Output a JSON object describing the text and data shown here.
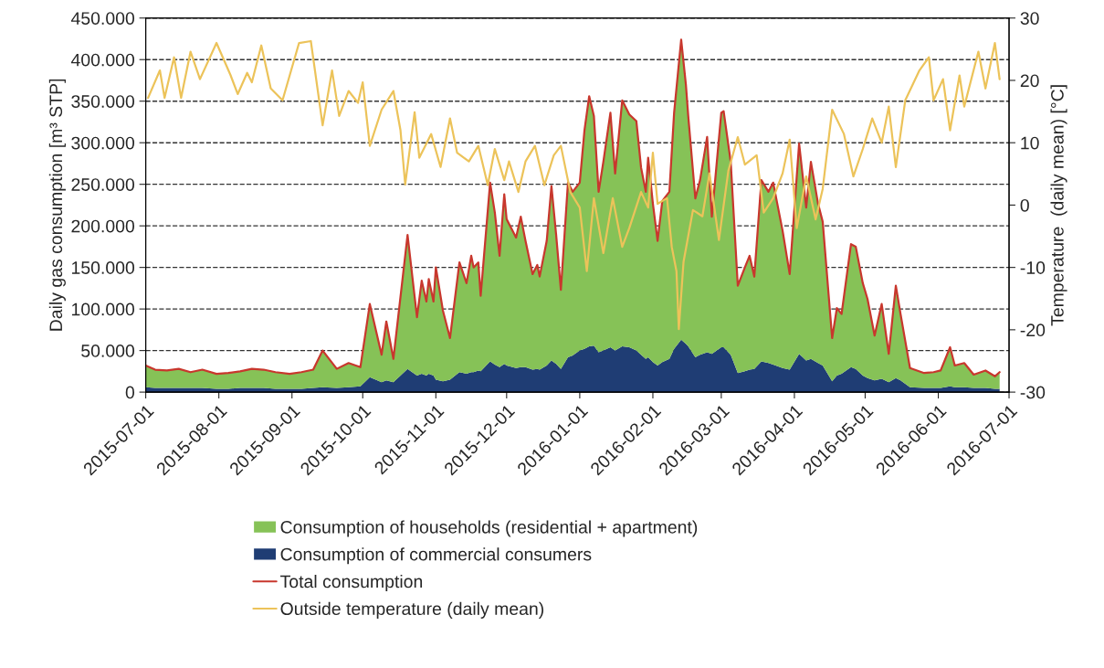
{
  "chart_data": {
    "type": "area",
    "stacked": true,
    "ylabel": "Daily gas consumption [m³ STP]",
    "y2label": "Temperature  (daily mean) [°C]",
    "x": [
      "2015-07-01",
      "2015-07-05",
      "2015-07-10",
      "2015-07-15",
      "2015-07-20",
      "2015-07-25",
      "2015-07-31",
      "2015-08-05",
      "2015-08-10",
      "2015-08-15",
      "2015-08-20",
      "2015-08-25",
      "2015-08-31",
      "2015-09-05",
      "2015-09-10",
      "2015-09-14",
      "2015-09-20",
      "2015-09-25",
      "2015-09-30",
      "2015-10-04",
      "2015-10-09",
      "2015-10-11",
      "2015-10-14",
      "2015-10-20",
      "2015-10-24",
      "2015-10-26",
      "2015-10-28",
      "2015-10-29",
      "2015-10-31",
      "2015-11-01",
      "2015-11-04",
      "2015-11-07",
      "2015-11-11",
      "2015-11-14",
      "2015-11-16",
      "2015-11-17",
      "2015-11-19",
      "2015-11-20",
      "2015-11-24",
      "2015-11-26",
      "2015-11-28",
      "2015-11-30",
      "2015-12-01",
      "2015-12-05",
      "2015-12-07",
      "2015-12-09",
      "2015-12-12",
      "2015-12-14",
      "2015-12-15",
      "2015-12-18",
      "2015-12-20",
      "2015-12-22",
      "2015-12-24",
      "2015-12-27",
      "2015-12-29",
      "2016-01-01",
      "2016-01-03",
      "2016-01-05",
      "2016-01-07",
      "2016-01-09",
      "2016-01-11",
      "2016-01-14",
      "2016-01-16",
      "2016-01-19",
      "2016-01-22",
      "2016-01-25",
      "2016-01-27",
      "2016-01-29",
      "2016-01-30",
      "2016-02-01",
      "2016-02-03",
      "2016-02-05",
      "2016-02-08",
      "2016-02-10",
      "2016-02-13",
      "2016-02-15",
      "2016-02-16",
      "2016-02-19",
      "2016-02-21",
      "2016-02-24",
      "2016-02-26",
      "2016-03-01",
      "2016-03-02",
      "2016-03-05",
      "2016-03-08",
      "2016-03-11",
      "2016-03-13",
      "2016-03-15",
      "2016-03-18",
      "2016-03-21",
      "2016-03-23",
      "2016-03-27",
      "2016-03-30",
      "2016-04-03",
      "2016-04-06",
      "2016-04-08",
      "2016-04-11",
      "2016-04-13",
      "2016-04-17",
      "2016-04-19",
      "2016-04-21",
      "2016-04-25",
      "2016-04-27",
      "2016-04-30",
      "2016-05-02",
      "2016-05-05",
      "2016-05-08",
      "2016-05-11",
      "2016-05-14",
      "2016-05-16",
      "2016-05-20",
      "2016-05-26",
      "2016-05-30",
      "2016-06-02",
      "2016-06-06",
      "2016-06-08",
      "2016-06-12",
      "2016-06-16",
      "2016-06-21",
      "2016-06-25",
      "2016-06-27"
    ],
    "series": [
      {
        "name": "Consumption of commercial consumers",
        "color": "#1f3d74",
        "values": [
          6000,
          5000,
          5000,
          5000,
          5000,
          5000,
          4000,
          4000,
          5000,
          5000,
          5000,
          4000,
          4000,
          4000,
          5000,
          6000,
          5000,
          6000,
          7000,
          18000,
          12000,
          14000,
          12000,
          28000,
          20000,
          22000,
          20000,
          22000,
          20000,
          15000,
          13000,
          15000,
          24000,
          22000,
          24000,
          24000,
          26000,
          25000,
          37000,
          33000,
          30000,
          34000,
          32000,
          29000,
          30000,
          30000,
          27000,
          28000,
          27000,
          32000,
          38000,
          34000,
          28000,
          42000,
          44000,
          50000,
          52000,
          55000,
          56000,
          48000,
          50000,
          54000,
          50000,
          55000,
          54000,
          50000,
          45000,
          40000,
          42000,
          36000,
          32000,
          36000,
          40000,
          52000,
          63000,
          58000,
          55000,
          42000,
          45000,
          48000,
          46000,
          54000,
          54000,
          45000,
          23000,
          25000,
          27000,
          28000,
          37000,
          35000,
          33000,
          29000,
          27000,
          46000,
          38000,
          40000,
          35000,
          32000,
          13000,
          20000,
          22000,
          30000,
          28000,
          20000,
          17000,
          14000,
          16000,
          12000,
          17000,
          14000,
          6000,
          5000,
          5000,
          5000,
          7000,
          6000,
          6000,
          5000,
          5000,
          4000,
          4000
        ]
      },
      {
        "name": "Consumption of households (residential + apartment)",
        "color": "#86c257",
        "values": [
          26000,
          22000,
          21000,
          23000,
          19000,
          22000,
          18000,
          19000,
          20000,
          23000,
          22000,
          20000,
          18000,
          20000,
          22000,
          44000,
          23000,
          29000,
          23000,
          88000,
          33000,
          71000,
          28000,
          161000,
          70000,
          112000,
          89000,
          114000,
          89000,
          135000,
          85000,
          50000,
          132000,
          109000,
          140000,
          126000,
          130000,
          91000,
          215000,
          183000,
          134000,
          204000,
          176000,
          157000,
          181000,
          152000,
          115000,
          125000,
          112000,
          150000,
          210000,
          155000,
          95000,
          210000,
          197000,
          202000,
          263000,
          301000,
          276000,
          193000,
          227000,
          282000,
          213000,
          296000,
          280000,
          276000,
          225000,
          201000,
          240000,
          191000,
          150000,
          194000,
          201000,
          284000,
          361000,
          312000,
          277000,
          191000,
          210000,
          259000,
          165000,
          282000,
          284000,
          232000,
          105000,
          125000,
          137000,
          111000,
          218000,
          206000,
          219000,
          165000,
          115000,
          253000,
          184000,
          237000,
          192000,
          173000,
          52000,
          81000,
          72000,
          148000,
          147000,
          111000,
          95000,
          54000,
          90000,
          34000,
          111000,
          80000,
          23000,
          18000,
          19000,
          21000,
          47000,
          26000,
          29000,
          16000,
          21000,
          15000,
          20000
        ]
      },
      {
        "name": "Total consumption",
        "type": "line",
        "color": "#c8372d",
        "values": [
          32000,
          27000,
          26000,
          28000,
          24000,
          27000,
          22000,
          23000,
          25000,
          28000,
          27000,
          24000,
          22000,
          24000,
          27000,
          50000,
          28000,
          35000,
          30000,
          106000,
          45000,
          85000,
          40000,
          189000,
          90000,
          134000,
          109000,
          136000,
          109000,
          150000,
          98000,
          65000,
          156000,
          131000,
          164000,
          150000,
          156000,
          116000,
          252000,
          216000,
          164000,
          238000,
          208000,
          186000,
          211000,
          182000,
          142000,
          153000,
          139000,
          182000,
          248000,
          189000,
          123000,
          252000,
          241000,
          252000,
          315000,
          356000,
          332000,
          241000,
          277000,
          336000,
          263000,
          351000,
          334000,
          326000,
          270000,
          241000,
          282000,
          227000,
          182000,
          230000,
          241000,
          336000,
          424000,
          370000,
          332000,
          233000,
          255000,
          307000,
          211000,
          336000,
          338000,
          277000,
          128000,
          150000,
          164000,
          139000,
          255000,
          241000,
          252000,
          194000,
          142000,
          299000,
          222000,
          277000,
          227000,
          205000,
          65000,
          101000,
          94000,
          178000,
          175000,
          131000,
          112000,
          68000,
          106000,
          46000,
          128000,
          94000,
          29000,
          23000,
          24000,
          26000,
          54000,
          32000,
          35000,
          21000,
          26000,
          19000,
          24000
        ]
      },
      {
        "name": "Outside temperature (daily mean)",
        "type": "line",
        "axis": "y2",
        "color": "#ecc35a",
        "x": [
          "2015-07-02",
          "2015-07-07",
          "2015-07-09",
          "2015-07-13",
          "2015-07-16",
          "2015-07-20",
          "2015-07-24",
          "2015-07-31",
          "2015-08-06",
          "2015-08-09",
          "2015-08-13",
          "2015-08-15",
          "2015-08-19",
          "2015-08-23",
          "2015-08-28",
          "2015-09-04",
          "2015-09-09",
          "2015-09-14",
          "2015-09-18",
          "2015-09-21",
          "2015-09-25",
          "2015-09-29",
          "2015-10-01",
          "2015-10-04",
          "2015-10-09",
          "2015-10-14",
          "2015-10-17",
          "2015-10-19",
          "2015-10-23",
          "2015-10-25",
          "2015-10-30",
          "2015-11-03",
          "2015-11-07",
          "2015-11-10",
          "2015-11-15",
          "2015-11-19",
          "2015-11-23",
          "2015-11-26",
          "2015-11-30",
          "2015-12-02",
          "2015-12-06",
          "2015-12-09",
          "2015-12-13",
          "2015-12-17",
          "2015-12-21",
          "2015-12-24",
          "2015-12-28",
          "2016-01-01",
          "2016-01-04",
          "2016-01-07",
          "2016-01-11",
          "2016-01-15",
          "2016-01-19",
          "2016-01-22",
          "2016-01-27",
          "2016-01-30",
          "2016-02-01",
          "2016-02-03",
          "2016-02-07",
          "2016-02-09",
          "2016-02-11",
          "2016-02-12",
          "2016-02-14",
          "2016-02-18",
          "2016-02-22",
          "2016-02-25",
          "2016-02-29",
          "2016-03-04",
          "2016-03-08",
          "2016-03-11",
          "2016-03-16",
          "2016-03-19",
          "2016-03-23",
          "2016-03-27",
          "2016-03-30",
          "2016-04-02",
          "2016-04-06",
          "2016-04-10",
          "2016-04-13",
          "2016-04-17",
          "2016-04-22",
          "2016-04-26",
          "2016-04-30",
          "2016-05-04",
          "2016-05-08",
          "2016-05-11",
          "2016-05-14",
          "2016-05-18",
          "2016-05-24",
          "2016-05-28",
          "2016-05-30",
          "2016-06-03",
          "2016-06-06",
          "2016-06-10",
          "2016-06-12",
          "2016-06-18",
          "2016-06-21",
          "2016-06-25",
          "2016-06-27"
        ],
        "values": [
          17.2,
          21.6,
          17.2,
          23.7,
          17.2,
          24.6,
          20.2,
          26,
          20.8,
          17.8,
          21.2,
          19.7,
          25.6,
          18.7,
          16.8,
          26,
          26.3,
          12.8,
          21.6,
          14.3,
          18.3,
          16.4,
          19.7,
          9.5,
          15.3,
          18.3,
          12,
          3.3,
          14.9,
          7.6,
          11.4,
          6.1,
          13.9,
          8.4,
          7,
          9.5,
          3.2,
          9,
          4,
          7,
          2.1,
          7,
          9.5,
          3.2,
          8,
          9.5,
          2.1,
          -0.4,
          -10.6,
          1.1,
          -7.7,
          1.1,
          -6.7,
          -3.7,
          2.1,
          -0.4,
          8.4,
          0.2,
          1.1,
          -6.7,
          -10.6,
          -19.9,
          -9.1,
          -0.8,
          -1.8,
          5.1,
          -5.6,
          5.5,
          10.9,
          6.5,
          8,
          -1.2,
          1.1,
          5.1,
          10.5,
          -3.7,
          4.6,
          -2.3,
          2.6,
          15.3,
          11.4,
          4.6,
          9,
          13.9,
          10,
          15.8,
          6.1,
          16.8,
          21.6,
          23.7,
          16.8,
          20.2,
          12,
          20.8,
          15.8,
          24.6,
          18.7,
          26,
          20.2
        ]
      }
    ],
    "xlim": [
      "2015-07-01",
      "2016-07-01"
    ],
    "xticks": [
      "2015-07-01",
      "2015-08-01",
      "2015-09-01",
      "2015-10-01",
      "2015-11-01",
      "2015-12-01",
      "2016-01-01",
      "2016-02-01",
      "2016-03-01",
      "2016-04-01",
      "2016-05-01",
      "2016-06-01",
      "2016-07-01"
    ],
    "ylim": [
      0,
      450000
    ],
    "yticks": [
      0,
      {
        "value": 50000,
        "label": "50.000"
      },
      {
        "value": 100000,
        "label": "100.000"
      },
      {
        "value": 150000,
        "label": "150.000"
      },
      {
        "value": 200000,
        "label": "200.000"
      },
      {
        "value": 250000,
        "label": "250.000"
      },
      {
        "value": 300000,
        "label": "300.000"
      },
      {
        "value": 350000,
        "label": "350.000"
      },
      {
        "value": 400000,
        "label": "400.000"
      },
      {
        "value": 450000,
        "label": "450.000"
      }
    ],
    "y2lim": [
      -30,
      30
    ],
    "y2ticks": [
      -30,
      -20,
      -10,
      0,
      10,
      20,
      30
    ],
    "grid": "y",
    "legend": "bottom"
  }
}
